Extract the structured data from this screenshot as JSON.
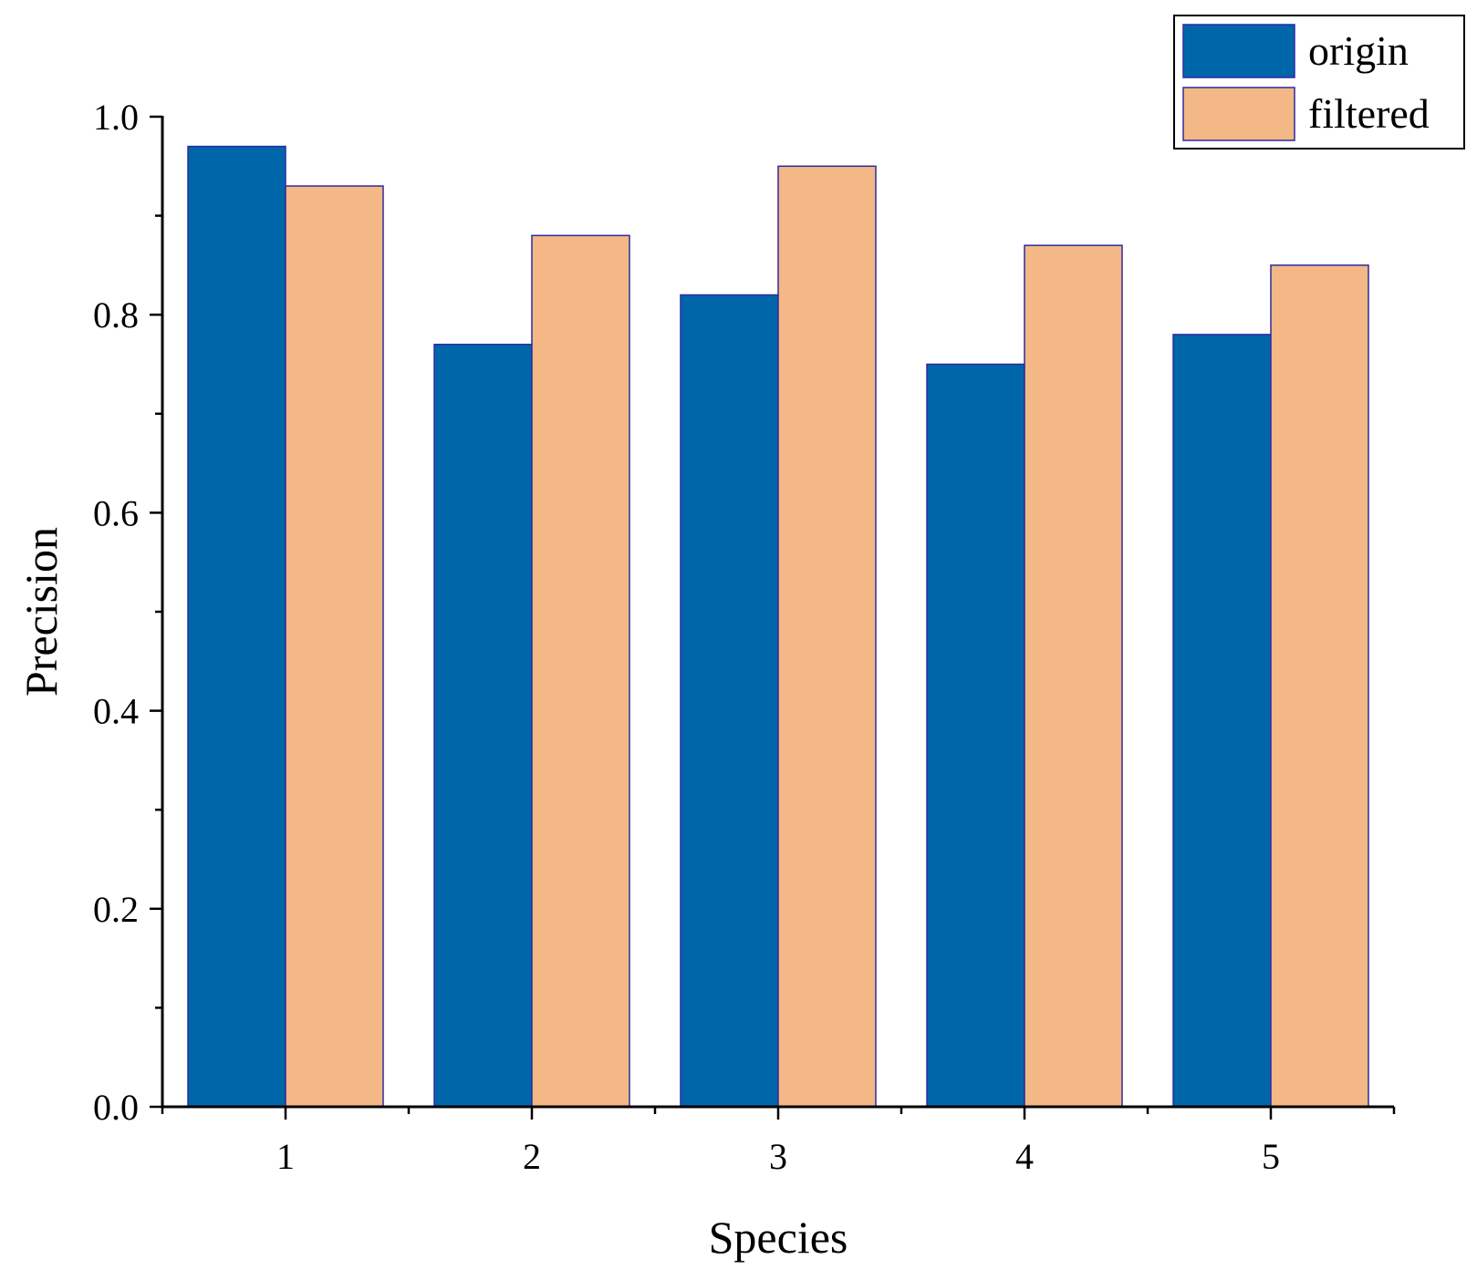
{
  "chart_data": {
    "type": "bar",
    "title": "",
    "xlabel": "Species",
    "ylabel": "Precision",
    "categories": [
      "1",
      "2",
      "3",
      "4",
      "5"
    ],
    "series": [
      {
        "name": "origin",
        "values": [
          0.97,
          0.77,
          0.82,
          0.75,
          0.78
        ],
        "color": "#0066AA"
      },
      {
        "name": "filtered",
        "values": [
          0.93,
          0.88,
          0.95,
          0.87,
          0.85
        ],
        "color": "#F4B886"
      }
    ],
    "ylim": [
      0,
      1.0
    ],
    "yticks": [
      "0.0",
      "0.2",
      "0.4",
      "0.6",
      "0.8",
      "1.0"
    ],
    "grid": false,
    "legend_position": "top-right",
    "bar_edge_color": "#2B2BA0"
  }
}
